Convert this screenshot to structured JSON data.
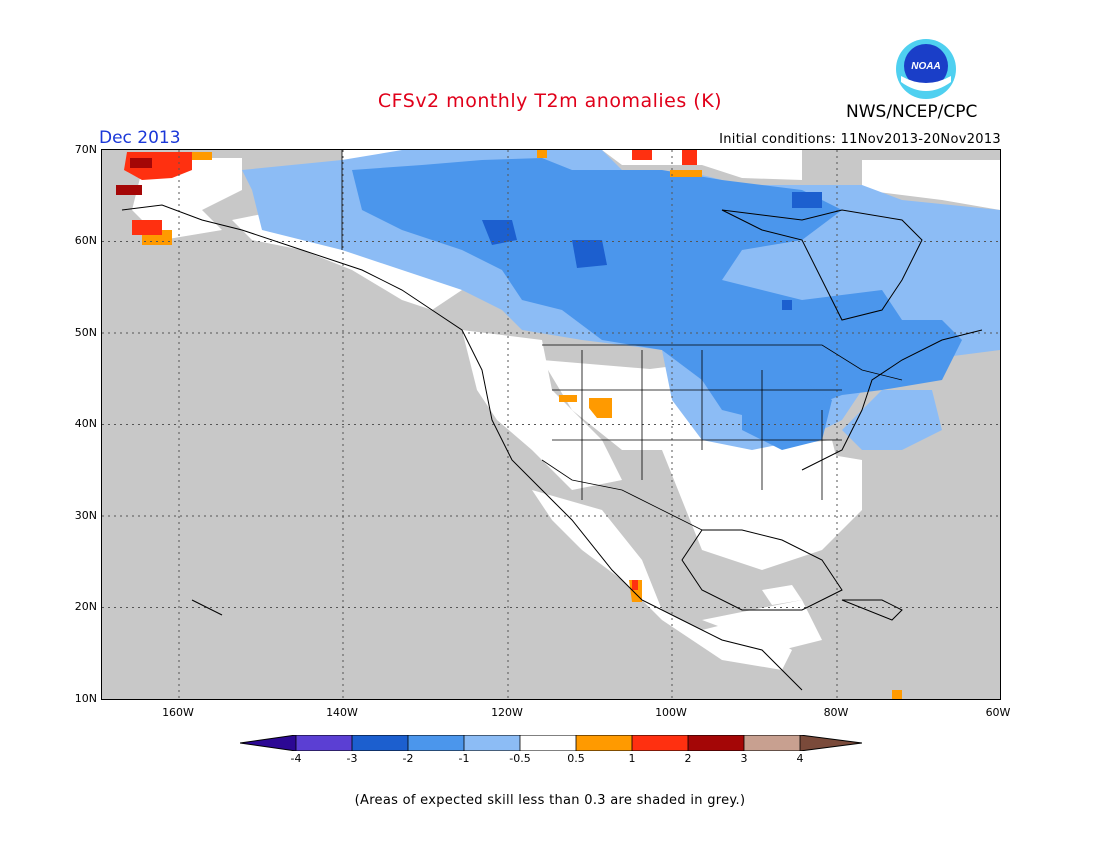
{
  "header": {
    "title": "CFSv2 monthly T2m anomalies (K)",
    "org": "NWS/NCEP/CPC",
    "logo_text": "NOAA",
    "month": "Dec 2013",
    "initial_conditions": "Initial conditions: 11Nov2013-20Nov2013"
  },
  "map": {
    "lat_labels": [
      "70N",
      "60N",
      "50N",
      "40N",
      "30N",
      "20N",
      "10N"
    ],
    "lon_labels": [
      "160W",
      "140W",
      "120W",
      "100W",
      "80W",
      "60W"
    ],
    "colors": {
      "ocean_grey": "#c8c8c8",
      "neutral": "#ffffff",
      "minus_0_5_to_1": "#8cbcf5",
      "minus_1_to_2": "#4b96ec",
      "minus_2_to_3": "#1c5fcf",
      "plus_0_5_to_1": "#ff9a00",
      "plus_1_to_2": "#ff3010",
      "plus_2_to_3": "#a40606"
    }
  },
  "colorbar": {
    "labels": [
      "-4",
      "-3",
      "-2",
      "-1",
      "-0.5",
      "0.5",
      "1",
      "2",
      "3",
      "4"
    ],
    "colors": [
      "#2c0894",
      "#5b3fd3",
      "#1c5fcf",
      "#4b96ec",
      "#8cbcf5",
      "#ffffff",
      "#ff9a00",
      "#ff3010",
      "#a40606",
      "#c8a090",
      "#7a4a3a"
    ]
  },
  "footer": {
    "note": "(Areas of expected skill less than 0.3 are shaded in grey.)"
  }
}
